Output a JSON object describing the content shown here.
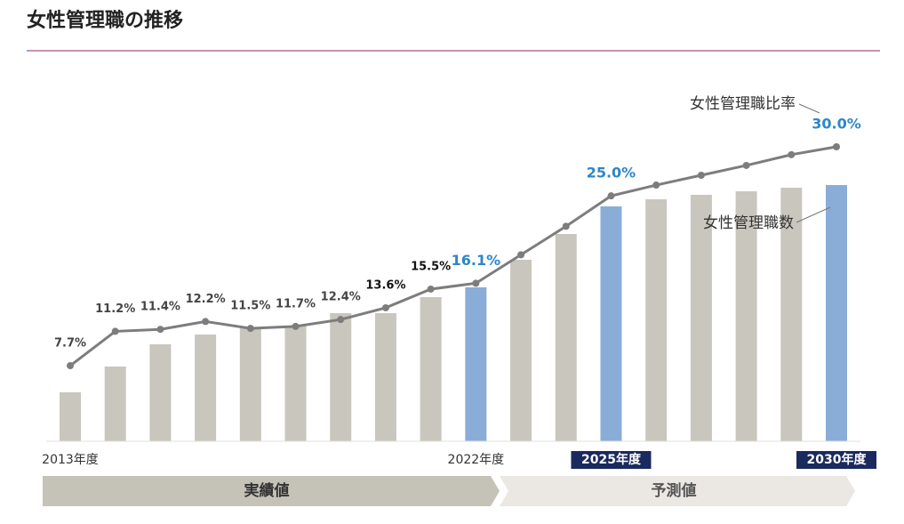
{
  "chart_data": {
    "type": "bar-line",
    "title": "女性管理職の推移",
    "categories": [
      "2013年度",
      null,
      null,
      null,
      null,
      null,
      null,
      null,
      null,
      "2022年度",
      null,
      null,
      "2025年度",
      null,
      null,
      null,
      null,
      "2030年度"
    ],
    "category_box": [
      false,
      false,
      false,
      false,
      false,
      false,
      false,
      false,
      false,
      false,
      false,
      false,
      true,
      false,
      false,
      false,
      false,
      true
    ],
    "series": [
      {
        "name": "女性管理職数",
        "type": "bar",
        "values": [
          55,
          84,
          109,
          120,
          127,
          130,
          144,
          144,
          162,
          173,
          204,
          233,
          264,
          272,
          277,
          281,
          285,
          288
        ],
        "colors": [
          "#c9c6bd",
          "#c9c6bd",
          "#c9c6bd",
          "#c9c6bd",
          "#c9c6bd",
          "#c9c6bd",
          "#c9c6bd",
          "#c9c6bd",
          "#c9c6bd",
          "#8aadd8",
          "#c9c6bd",
          "#c9c6bd",
          "#8aadd8",
          "#c9c6bd",
          "#c9c6bd",
          "#c9c6bd",
          "#c9c6bd",
          "#8aadd8"
        ]
      },
      {
        "name": "女性管理職比率",
        "type": "line",
        "axis": "y2",
        "color": "#7d7d7d",
        "values": [
          7.7,
          11.2,
          11.4,
          12.2,
          11.5,
          11.7,
          12.4,
          13.6,
          15.5,
          16.1,
          19.0,
          21.9,
          25.0,
          26.1,
          27.1,
          28.1,
          29.2,
          30.0
        ],
        "value_labels": [
          "7.7%",
          "11.2%",
          "11.4%",
          "12.2%",
          "11.5%",
          "11.7%",
          "12.4%",
          "13.6%",
          "15.5%",
          "16.1%",
          null,
          null,
          "25.0%",
          null,
          null,
          null,
          null,
          "30.0%"
        ],
        "label_colors": [
          "#444",
          "#444",
          "#444",
          "#444",
          "#444",
          "#444",
          "#444",
          "#111",
          "#111",
          "#2e86c8",
          "#444",
          "#444",
          "#2e86c8",
          "#444",
          "#444",
          "#444",
          "#444",
          "#2e86c8"
        ]
      }
    ],
    "ylim": [
      0,
      331
    ],
    "y2lim": [
      0,
      30
    ],
    "phases": [
      {
        "label": "実績値",
        "color": "#c5c2b8"
      },
      {
        "label": "予測値",
        "color": "#ebe8e3"
      }
    ]
  }
}
